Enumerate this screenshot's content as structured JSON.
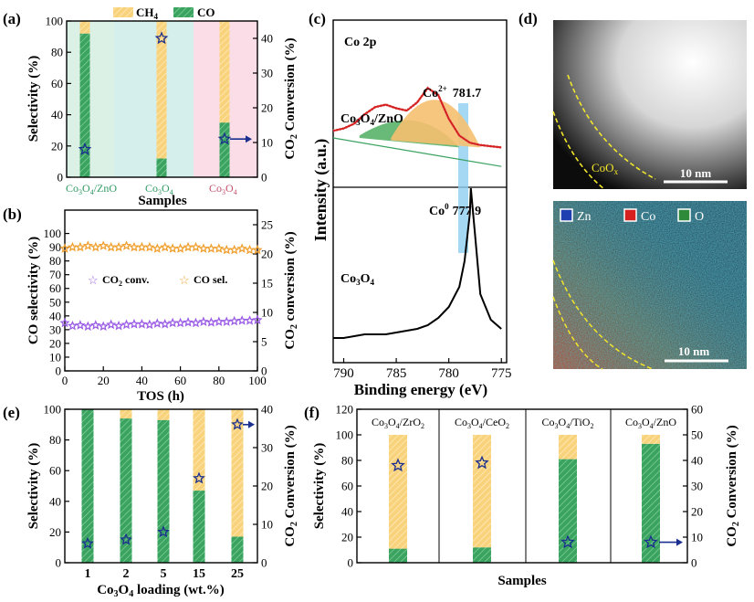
{
  "colors": {
    "ch4": "#f9d27c",
    "co": "#3aa360",
    "co_dark": "#1f7e45",
    "star": "#1a2f8f",
    "star_b": "#9b5de5",
    "star_orange": "#f0a030",
    "fit_red": "#d62020",
    "co2plus_fill": "#f6c070",
    "co3plus_fill": "#4fae62",
    "band": "#8fcff0",
    "teal_label": "#2f9a62",
    "pink_label": "#c4506a"
  },
  "panels": {
    "a": {
      "label": "(a)",
      "legend": {
        "ch4": "CH",
        "ch4_sub": "4",
        "co": "CO"
      },
      "ylabel_left": "Selectivity (%)",
      "ylabel_right_main": "CO",
      "ylabel_right_sub": "2",
      "ylabel_right_rest": " Conversion (%)",
      "xlabel": "Samples",
      "categories": [
        {
          "main": "Co",
          "sub1": "3",
          "mid": "O",
          "sub2": "4",
          "tail": "/ZnO"
        },
        {
          "main": "Co",
          "sub1": "3",
          "mid": "O",
          "sub2": "4",
          "tail": ""
        },
        {
          "main": "Co",
          "sub1": "3",
          "mid": "O",
          "sub2": "4",
          "tail": ""
        }
      ]
    },
    "b": {
      "label": "(b)",
      "ylabel_left": "CO selectivity (%)",
      "ylabel_right_main": "CO",
      "ylabel_right_sub": "2",
      "ylabel_right_rest": " conversion (%)",
      "xlabel": "TOS (h)",
      "legend_conv_main": "CO",
      "legend_conv_sub": "2",
      "legend_conv_rest": " conv.",
      "legend_sel": "CO sel."
    },
    "c": {
      "label": "(c)",
      "title": "Co 2p",
      "ylabel": "Intensity (a.u.)",
      "xlabel": "Binding energy (eV)",
      "peak_co2plus_main": "Co",
      "peak_co2plus_sup": "2+",
      "peak_co2plus_value": "781.7",
      "peak_co0_main": "Co",
      "peak_co0_sup": "0",
      "peak_co0_value": "777.9",
      "sample_top": {
        "main": "Co",
        "sub1": "3",
        "mid": "O",
        "sub2": "4",
        "tail": "/ZnO"
      },
      "sample_bottom": {
        "main": "Co",
        "sub1": "3",
        "mid": "O",
        "sub2": "4",
        "tail": ""
      }
    },
    "d": {
      "label": "(d)",
      "cox_main": "CoO",
      "cox_sub": "x",
      "scale_top": "10 nm",
      "scale_bottom": "10 nm",
      "legend": [
        "Zn",
        "Co",
        "O"
      ],
      "legend_colors": [
        "#1f3fb0",
        "#d62020",
        "#2f8a3a"
      ]
    },
    "e": {
      "label": "(e)",
      "ylabel_left": "Selectivity (%)",
      "ylabel_right_main": "CO",
      "ylabel_right_sub": "2",
      "ylabel_right_rest": " Conversion (%)",
      "xlabel_main": "Co",
      "xlabel_sub1": "3",
      "xlabel_mid": "O",
      "xlabel_sub2": "4",
      "xlabel_rest": " loading (wt.%)"
    },
    "f": {
      "label": "(f)",
      "ylabel_left": "Selectivity (%)",
      "ylabel_right_main": "CO",
      "ylabel_right_sub": "2",
      "ylabel_right_rest": " Conversion (%)",
      "xlabel": "Samples",
      "headers": [
        {
          "main": "Co",
          "sub1": "3",
          "mid": "O",
          "sub2": "4",
          "tail": "/ZrO",
          "sub3": "2"
        },
        {
          "main": "Co",
          "sub1": "3",
          "mid": "O",
          "sub2": "4",
          "tail": "/CeO",
          "sub3": "2"
        },
        {
          "main": "Co",
          "sub1": "3",
          "mid": "O",
          "sub2": "4",
          "tail": "/TiO",
          "sub3": "2"
        },
        {
          "main": "Co",
          "sub1": "3",
          "mid": "O",
          "sub2": "4",
          "tail": "/ZnO",
          "sub3": ""
        }
      ]
    }
  },
  "chart_data": [
    {
      "panel": "a",
      "type": "bar",
      "stacked": true,
      "categories": [
        "Co3O4/ZnO",
        "Co3O4",
        "Co3O4"
      ],
      "series": [
        {
          "name": "CO",
          "values": [
            92,
            12,
            35
          ]
        },
        {
          "name": "CH4",
          "values": [
            8,
            88,
            65
          ]
        }
      ],
      "conversion": [
        8,
        40,
        11
      ],
      "ylim": [
        0,
        100
      ],
      "yticks": [
        0,
        20,
        40,
        60,
        80,
        100
      ],
      "y2lim": [
        0,
        45
      ],
      "y2ticks": [
        0,
        10,
        20,
        30,
        40
      ],
      "xlabel": "Samples",
      "ylabel": "Selectivity (%)",
      "y2label": "CO2 Conversion (%)"
    },
    {
      "panel": "b",
      "type": "scatter",
      "x": [
        0,
        4,
        8,
        12,
        16,
        20,
        24,
        28,
        32,
        36,
        40,
        44,
        48,
        52,
        56,
        60,
        64,
        68,
        72,
        76,
        80,
        84,
        88,
        92,
        96,
        100
      ],
      "series": [
        {
          "name": "CO sel.",
          "axis": "left",
          "values": [
            89,
            90,
            90,
            91,
            90,
            91,
            90,
            90,
            91,
            90,
            90,
            90,
            89,
            90,
            89,
            89,
            90,
            90,
            89,
            89,
            89,
            88,
            88,
            89,
            88,
            88
          ]
        },
        {
          "name": "CO2 conv.",
          "axis": "right",
          "values": [
            8.2,
            7.7,
            7.8,
            7.6,
            7.8,
            7.6,
            7.9,
            7.7,
            7.9,
            8.0,
            8.0,
            7.9,
            8.1,
            8.0,
            8.2,
            8.2,
            8.3,
            8.2,
            8.4,
            8.3,
            8.4,
            8.4,
            8.5,
            8.6,
            8.6,
            8.7
          ]
        }
      ],
      "xlim": [
        0,
        100
      ],
      "xticks": [
        0,
        20,
        40,
        60,
        80,
        100
      ],
      "ylim": [
        0,
        117
      ],
      "yticks": [
        0,
        10,
        20,
        30,
        40,
        50,
        60,
        70,
        80,
        90,
        100
      ],
      "y2lim": [
        0,
        27.5
      ],
      "y2ticks": [
        0,
        5,
        10,
        15,
        20,
        25
      ],
      "xlabel": "TOS (h)",
      "ylabel": "CO selectivity (%)",
      "y2label": "CO2 conversion (%)"
    },
    {
      "panel": "c",
      "type": "line",
      "xlim": [
        791,
        774.5
      ],
      "xticks": [
        790,
        785,
        780,
        775
      ],
      "xlabel": "Binding energy (eV)",
      "ylabel": "Intensity (a.u.)",
      "series": [
        {
          "name": "Co3O4/ZnO fit",
          "x": [
            791,
            790,
            789,
            788,
            787,
            786,
            785,
            784,
            783,
            782,
            781,
            780,
            779,
            778,
            777,
            776,
            775
          ],
          "values": [
            0.36,
            0.38,
            0.42,
            0.5,
            0.56,
            0.58,
            0.55,
            0.53,
            0.6,
            0.72,
            0.66,
            0.46,
            0.32,
            0.26,
            0.24,
            0.23,
            0.22
          ]
        },
        {
          "name": "Co3O4",
          "x": [
            791,
            790,
            789,
            788,
            787,
            786,
            785,
            784,
            783,
            782,
            781,
            780,
            779,
            778.5,
            778,
            777.9,
            777.5,
            777,
            776,
            775
          ],
          "values": [
            0.1,
            0.1,
            0.11,
            0.12,
            0.12,
            0.12,
            0.13,
            0.14,
            0.15,
            0.17,
            0.21,
            0.27,
            0.38,
            0.52,
            0.78,
            0.92,
            0.66,
            0.34,
            0.2,
            0.15
          ]
        }
      ],
      "peaks": [
        {
          "label": "Co2+",
          "x": 781.7
        },
        {
          "label": "Co0",
          "x": 777.9
        }
      ]
    },
    {
      "panel": "e",
      "type": "bar",
      "stacked": true,
      "categories": [
        "1",
        "2",
        "5",
        "15",
        "25"
      ],
      "series": [
        {
          "name": "CO",
          "values": [
            100,
            94,
            93,
            47,
            17
          ]
        },
        {
          "name": "CH4",
          "values": [
            0,
            6,
            7,
            53,
            83
          ]
        }
      ],
      "conversion": [
        5,
        6,
        8,
        22,
        36
      ],
      "ylim": [
        0,
        100
      ],
      "yticks": [
        0,
        20,
        40,
        60,
        80,
        100
      ],
      "y2lim": [
        0,
        40
      ],
      "y2ticks": [
        0,
        10,
        20,
        30,
        40
      ],
      "xlabel": "Co3O4 loading (wt.%)",
      "ylabel": "Selectivity (%)",
      "y2label": "CO2 Conversion (%)"
    },
    {
      "panel": "f",
      "type": "bar",
      "stacked": true,
      "categories": [
        "Co3O4/ZrO2",
        "Co3O4/CeO2",
        "Co3O4/TiO2",
        "Co3O4/ZnO"
      ],
      "series": [
        {
          "name": "CO",
          "values": [
            11,
            12,
            81,
            93
          ]
        },
        {
          "name": "CH4",
          "values": [
            89,
            88,
            19,
            7
          ]
        }
      ],
      "conversion": [
        38,
        39,
        8,
        8
      ],
      "ylim": [
        0,
        120
      ],
      "yticks": [
        0,
        20,
        40,
        60,
        80,
        100,
        120
      ],
      "y2lim": [
        0,
        60
      ],
      "y2ticks": [
        0,
        10,
        20,
        30,
        40,
        50,
        60
      ],
      "xlabel": "Samples",
      "ylabel": "Selectivity (%)",
      "y2label": "CO2 Conversion (%)"
    }
  ]
}
